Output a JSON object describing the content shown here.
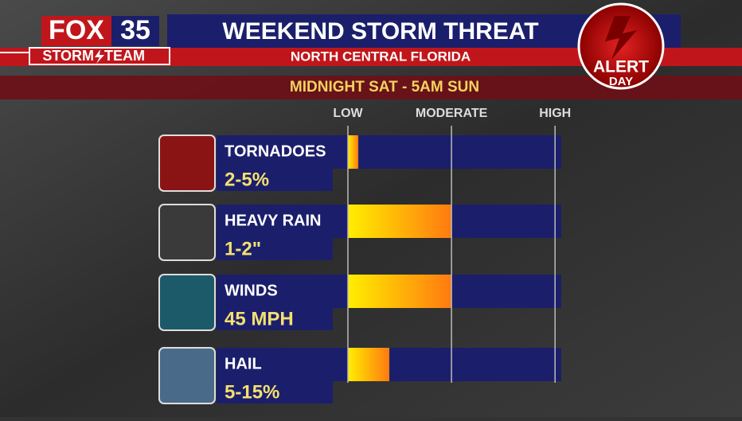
{
  "chart_data": {
    "type": "bar",
    "orientation": "horizontal",
    "title": "WEEKEND STORM THREAT",
    "subtitle": "NORTH CENTRAL FLORIDA",
    "period": "MIDNIGHT SAT - 5AM SUN",
    "categories": [
      "TORNADOES",
      "HEAVY RAIN",
      "WINDS",
      "HAIL"
    ],
    "amounts": [
      "2-5%",
      "1-2\"",
      "45 MPH",
      "5-15%"
    ],
    "values": [
      0.1,
      1,
      1,
      0.4
    ],
    "xlim": [
      0,
      2.06
    ],
    "xticks": [
      {
        "value": 0,
        "label": "LOW"
      },
      {
        "value": 1,
        "label": "MODERATE"
      },
      {
        "value": 2,
        "label": "HIGH"
      }
    ],
    "grid": true
  },
  "branding": {
    "station": "FOX",
    "channel": "35",
    "team_left": "STORM",
    "team_right": "TEAM",
    "badge_top": "ALERT",
    "badge_bottom": "DAY"
  }
}
